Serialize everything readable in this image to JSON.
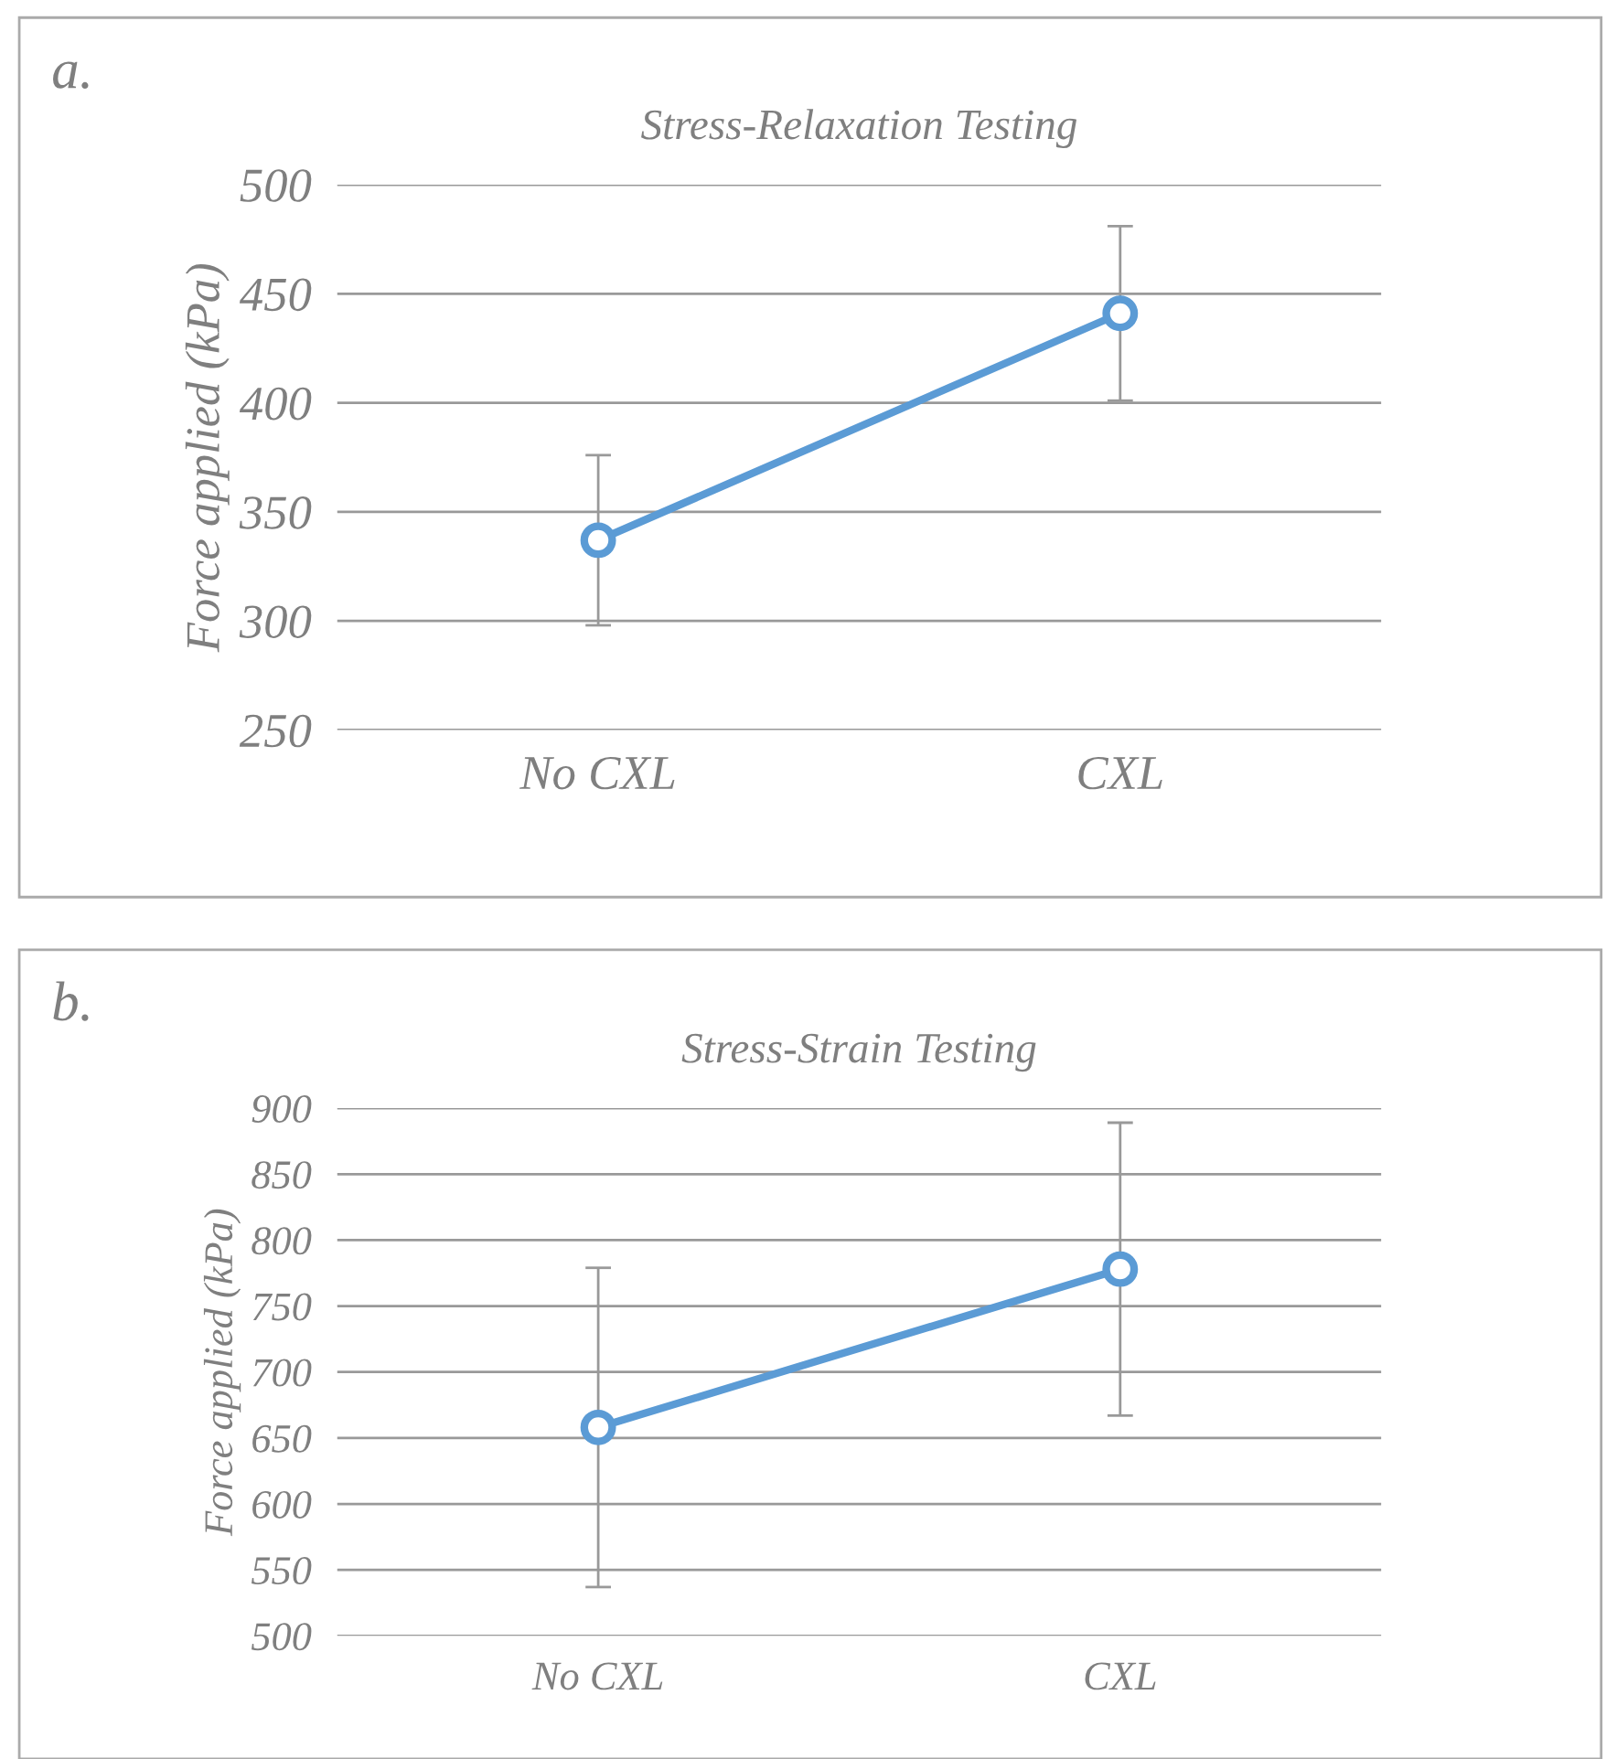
{
  "chart_data": [
    {
      "type": "line",
      "title": "Stress-Relaxation Testing",
      "ylabel": "Force applied (kPa)",
      "annotations": [
        "a."
      ],
      "categories": [
        "No CXL",
        "CXL"
      ],
      "series": [
        {
          "color": "#5b9bd5",
          "values": [
            337,
            441
          ],
          "errors": [
            39,
            40
          ]
        }
      ],
      "ylim": [
        250,
        500
      ],
      "yticks": [
        250,
        300,
        350,
        400,
        450,
        500
      ],
      "grid": "y",
      "legend": false,
      "marker": "circle",
      "line_style": "solid"
    },
    {
      "type": "line",
      "title": "Stress-Strain Testing",
      "ylabel": "Force applied (kPa)",
      "annotations": [
        "b."
      ],
      "categories": [
        "No CXL",
        "CXL"
      ],
      "series": [
        {
          "color": "#5b9bd5",
          "values": [
            658,
            778
          ],
          "errors": [
            121,
            111
          ]
        }
      ],
      "ylim": [
        500,
        900
      ],
      "yticks": [
        500,
        550,
        600,
        650,
        700,
        750,
        800,
        850,
        900
      ],
      "grid": "y",
      "legend": false,
      "marker": "circle",
      "line_style": "solid"
    }
  ]
}
